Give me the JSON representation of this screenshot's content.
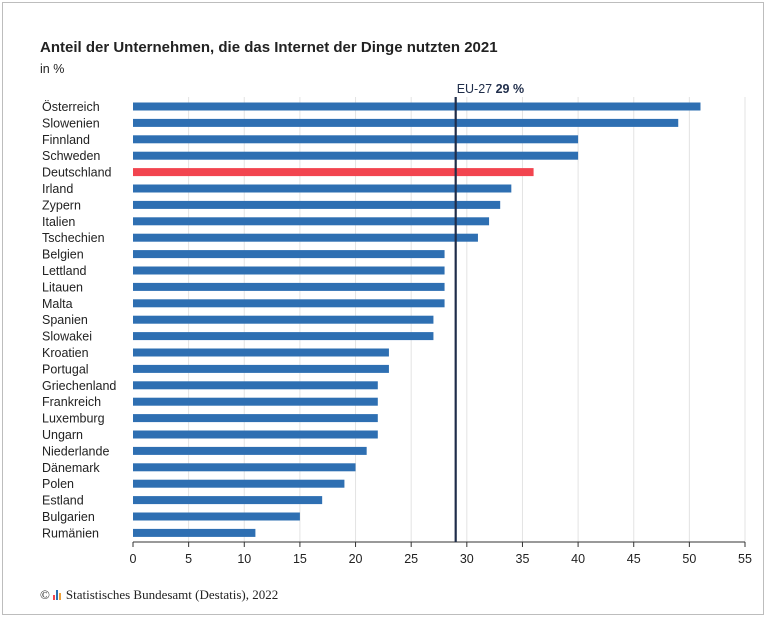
{
  "chart_data": {
    "type": "bar",
    "orientation": "horizontal",
    "title": "Anteil der Unternehmen, die das Internet der Dinge nutzten 2021",
    "subtitle": "in %",
    "categories": [
      "Österreich",
      "Slowenien",
      "Finnland",
      "Schweden",
      "Deutschland",
      "Irland",
      "Zypern",
      "Italien",
      "Tschechien",
      "Belgien",
      "Lettland",
      "Litauen",
      "Malta",
      "Spanien",
      "Slowakei",
      "Kroatien",
      "Portugal",
      "Griechenland",
      "Frankreich",
      "Luxemburg",
      "Ungarn",
      "Niederlande",
      "Dänemark",
      "Polen",
      "Estland",
      "Bulgarien",
      "Rumänien"
    ],
    "values": [
      51,
      49,
      40,
      40,
      36,
      34,
      33,
      32,
      31,
      28,
      28,
      28,
      28,
      27,
      27,
      23,
      23,
      22,
      22,
      22,
      22,
      21,
      20,
      19,
      17,
      15,
      11
    ],
    "highlight": "Deutschland",
    "xlim": [
      0,
      55
    ],
    "xticks": [
      0,
      5,
      10,
      15,
      20,
      25,
      30,
      35,
      40,
      45,
      50,
      55
    ],
    "grid": true,
    "reference_line": {
      "value": 29,
      "label": "EU-27",
      "value_label": "29 %"
    },
    "colors": {
      "bar": "#2e6fb2",
      "highlight": "#f2444f",
      "reference": "#1f2d4a",
      "grid": "#e3e3e3"
    }
  },
  "footer": {
    "copyright": "©",
    "source": "Statistisches Bundesamt (Destatis), 2022"
  }
}
